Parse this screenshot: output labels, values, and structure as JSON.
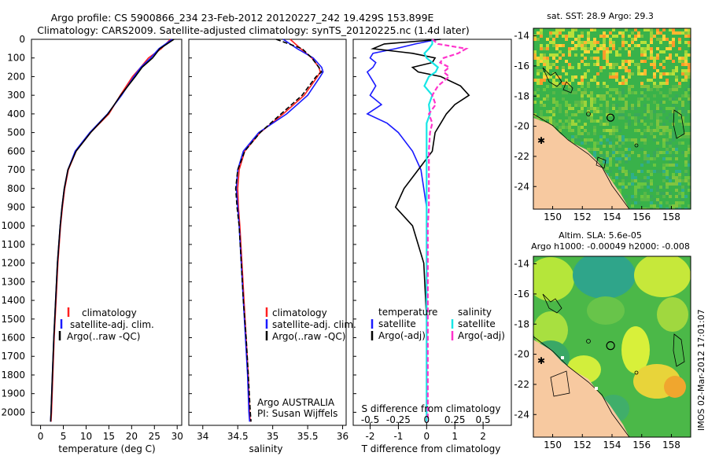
{
  "title_line1": "Argo profile: CS 5900866_234 23-Feb-2012 20120227_242 19.429S 153.899E",
  "title_line2": "Climatology: CARS2009. Satellite-adjusted climatology: synTS_20120225.nc (1.4d later)",
  "colors": {
    "climatology": "#ff2020",
    "satellite": "#1a1aff",
    "argo": "#000000",
    "cyan": "#17e6e6",
    "magenta": "#ff33cc",
    "land": "#f7c9a0"
  },
  "depth_ticks": [
    "0",
    "100",
    "200",
    "300",
    "400",
    "500",
    "600",
    "700",
    "800",
    "900",
    "1000",
    "1100",
    "1200",
    "1300",
    "1400",
    "1500",
    "1600",
    "1700",
    "1800",
    "1900",
    "2000"
  ],
  "chart_data": [
    {
      "type": "line",
      "title": "temperature",
      "xlabel": "temperature (deg C)",
      "ylabel": "depth",
      "xlim": [
        -2,
        31
      ],
      "ylim": [
        2070,
        0
      ],
      "xticks": [
        "0",
        "5",
        "10",
        "15",
        "20",
        "25",
        "30"
      ],
      "legend": [
        "climatology",
        "satellite-adj. clim.",
        "Argo(..raw -QC)"
      ],
      "depth": [
        0,
        50,
        100,
        150,
        200,
        300,
        400,
        500,
        600,
        700,
        800,
        900,
        1000,
        1200,
        1400,
        1600,
        1800,
        2000,
        2050
      ],
      "series": [
        {
          "name": "climatology",
          "values": [
            28.5,
            26.5,
            23.7,
            22.0,
            20.2,
            17.5,
            15.0,
            11.0,
            7.8,
            6.1,
            5.3,
            4.8,
            4.4,
            3.8,
            3.4,
            3.0,
            2.7,
            2.4,
            2.3
          ]
        },
        {
          "name": "satellite-adj. clim.",
          "values": [
            28.9,
            26.0,
            24.2,
            22.0,
            20.5,
            17.8,
            14.7,
            10.8,
            7.6,
            6.0,
            5.2,
            4.7,
            4.3,
            3.7,
            3.3,
            2.9,
            2.6,
            2.3,
            2.2
          ]
        },
        {
          "name": "Argo(..raw -QC)",
          "values": [
            29.3,
            26.2,
            24.6,
            22.3,
            20.8,
            17.6,
            14.8,
            11.0,
            7.8,
            6.0,
            5.2,
            4.7,
            4.3,
            3.7,
            3.3,
            2.9,
            2.6,
            2.3,
            2.2
          ]
        }
      ]
    },
    {
      "type": "line",
      "title": "salinity",
      "xlabel": "salinity",
      "ylabel": "depth",
      "xlim": [
        33.8,
        36.05
      ],
      "ylim": [
        2070,
        0
      ],
      "xticks": [
        "34",
        "34.5",
        "35",
        "35.5",
        "36"
      ],
      "legend": [
        "climatology",
        "satellite-adj. clim.",
        "Argo(..raw -QC)"
      ],
      "depth": [
        0,
        50,
        100,
        150,
        175,
        200,
        300,
        400,
        500,
        600,
        700,
        800,
        900,
        1000,
        1200,
        1400,
        1600,
        1800,
        2000,
        2050
      ],
      "series": [
        {
          "name": "climatology",
          "values": [
            35.25,
            35.4,
            35.56,
            35.66,
            35.68,
            35.64,
            35.45,
            35.15,
            34.82,
            34.6,
            34.52,
            34.5,
            34.51,
            34.53,
            34.56,
            34.59,
            34.62,
            34.65,
            34.67,
            34.68
          ]
        },
        {
          "name": "satellite-adj. clim.",
          "values": [
            35.15,
            35.35,
            35.58,
            35.7,
            35.72,
            35.68,
            35.5,
            35.2,
            34.8,
            34.58,
            34.5,
            34.48,
            34.5,
            34.52,
            34.55,
            34.58,
            34.61,
            34.64,
            34.66,
            34.67
          ]
        },
        {
          "name": "Argo(..raw -QC)",
          "values": [
            35.05,
            35.42,
            35.56,
            35.66,
            35.7,
            35.62,
            35.42,
            35.12,
            34.82,
            34.6,
            34.5,
            34.47,
            34.49,
            34.52,
            34.55,
            34.58,
            34.62,
            34.65,
            34.68,
            34.69
          ]
        }
      ],
      "annotation": [
        "Argo AUSTRALIA",
        "PI: Susan Wijffels"
      ]
    },
    {
      "type": "line",
      "title": "differences from climatology",
      "xlabel": "T difference from climatology",
      "x2label": "S difference from climatology",
      "ylabel": "depth",
      "xlim": [
        -2.6,
        3.0
      ],
      "ylim": [
        2070,
        0
      ],
      "xticks": [
        "-2",
        "-1",
        "0",
        "1",
        "2"
      ],
      "x2ticks": [
        "-0.5",
        "-0.25",
        "0",
        "0.25",
        "0.5"
      ],
      "legend_headers": [
        "temperature",
        "salinity"
      ],
      "legend": [
        "satellite",
        "Argo(-adj)",
        "satellite",
        "Argo(-adj)"
      ],
      "depth": [
        0,
        25,
        50,
        75,
        100,
        125,
        150,
        175,
        200,
        250,
        300,
        350,
        400,
        450,
        500,
        600,
        700,
        800,
        900,
        1000,
        1200,
        1500,
        2000,
        2050
      ],
      "series": [
        {
          "name": "T satellite",
          "values": [
            0.4,
            -0.4,
            -1.1,
            -1.9,
            -2.0,
            -1.8,
            -1.9,
            -2.1,
            -2.0,
            -1.8,
            -2.0,
            -1.6,
            -2.1,
            -1.4,
            -1.0,
            -0.5,
            -0.2,
            -0.1,
            0.0,
            0.0,
            0.0,
            0.0,
            0.0,
            0.0
          ]
        },
        {
          "name": "T Argo(-adj)",
          "values": [
            0.5,
            -1.5,
            -1.9,
            -0.5,
            0.3,
            0.2,
            -0.5,
            -0.3,
            0.5,
            1.2,
            1.5,
            1.0,
            0.7,
            0.5,
            0.3,
            0.2,
            -0.3,
            -0.8,
            -1.1,
            -0.5,
            -0.1,
            0.0,
            0.0,
            0.0
          ]
        },
        {
          "name": "S satellite",
          "values": [
            0.05,
            0.05,
            0.02,
            -0.02,
            0.0,
            0.05,
            0.1,
            0.08,
            0.02,
            -0.02,
            0.05,
            0.02,
            0.03,
            0.0,
            0.0,
            0.0,
            0.0,
            0.0,
            0.0,
            0.0,
            0.0,
            0.0,
            0.0,
            0.0
          ]
        },
        {
          "name": "S Argo(-adj)",
          "values": [
            0.05,
            0.1,
            0.35,
            0.28,
            0.15,
            0.12,
            0.2,
            0.15,
            0.2,
            0.1,
            0.05,
            0.08,
            0.02,
            0.05,
            0.03,
            0.02,
            0.02,
            0.02,
            0.02,
            0.01,
            0.01,
            0.01,
            0.01,
            0.01
          ]
        }
      ]
    },
    {
      "type": "heatmap",
      "title": "sat. SST: 28.9  Argo: 29.3",
      "xlim": [
        148.7,
        159.3
      ],
      "ylim": [
        -25.5,
        -13.5
      ],
      "xticks": [
        "150",
        "152",
        "154",
        "156",
        "158"
      ],
      "yticks": [
        "-14",
        "-16",
        "-18",
        "-20",
        "-22",
        "-24"
      ],
      "float_position": [
        153.9,
        -19.43
      ]
    },
    {
      "type": "heatmap",
      "title_line1": "Altim. SLA: 5.6e-05",
      "title_line2": "Argo h1000: -0.00049 h2000: -0.008",
      "xlim": [
        148.7,
        159.3
      ],
      "ylim": [
        -25.5,
        -13.5
      ],
      "xticks": [
        "150",
        "152",
        "154",
        "156",
        "158"
      ],
      "yticks": [
        "-14",
        "-16",
        "-18",
        "-20",
        "-22",
        "-24"
      ],
      "float_position": [
        153.9,
        -19.43
      ]
    }
  ],
  "timestamp": "IMOS 02-Mar-2012 17:01:07"
}
